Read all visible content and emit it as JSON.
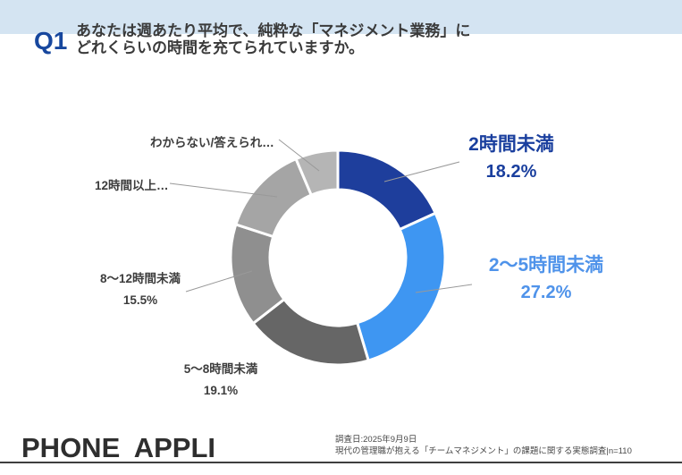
{
  "header": {
    "q_label": "Q1",
    "question_line1": "あなたは週あたり平均で、純粋な「マネジメント業務」に",
    "question_line2": "どれくらいの時間を充てられていますか。",
    "band_color": "#d4e4f2",
    "q_label_color": "#17479e"
  },
  "chart_data": {
    "type": "pie",
    "subtype": "donut",
    "direction": "clockwise",
    "start_angle_deg": 0,
    "inner_radius_ratio": 0.63,
    "legend_position": "callout-labels",
    "note": "Percentages for the last two slices are not displayed in the chart; their values are estimated from arc angles (remaining 20.0% of n=110).",
    "slices": [
      {
        "label": "2時間未満",
        "value": 18.2,
        "pct_label": "18.2%",
        "color": "#1e3e9c",
        "label_color": "#1a3f9e"
      },
      {
        "label": "2〜5時間未満",
        "value": 27.2,
        "pct_label": "27.2%",
        "color": "#3e96f2",
        "label_color": "#4f93ea"
      },
      {
        "label": "5〜8時間未満",
        "value": 19.1,
        "pct_label": "19.1%",
        "color": "#666666",
        "label_color": "#3d3d3d"
      },
      {
        "label": "8〜12時間未満",
        "value": 15.5,
        "pct_label": "15.5%",
        "color": "#8f8f8f",
        "label_color": "#3d3d3d"
      },
      {
        "label": "12時間以上…",
        "value": 13.6,
        "pct_label": "",
        "color": "#a5a5a5",
        "label_color": "#3d3d3d"
      },
      {
        "label": "わからない/答えられ…",
        "value": 6.4,
        "pct_label": "",
        "color": "#b5b5b5",
        "label_color": "#3d3d3d"
      }
    ]
  },
  "footer": {
    "logo_text": "PHONE APPLI",
    "note_line1": "調査日:2025年9月9日",
    "note_line2": "現代の管理職が抱える「チームマネジメント」の課題に関する実態調査|n=110"
  }
}
